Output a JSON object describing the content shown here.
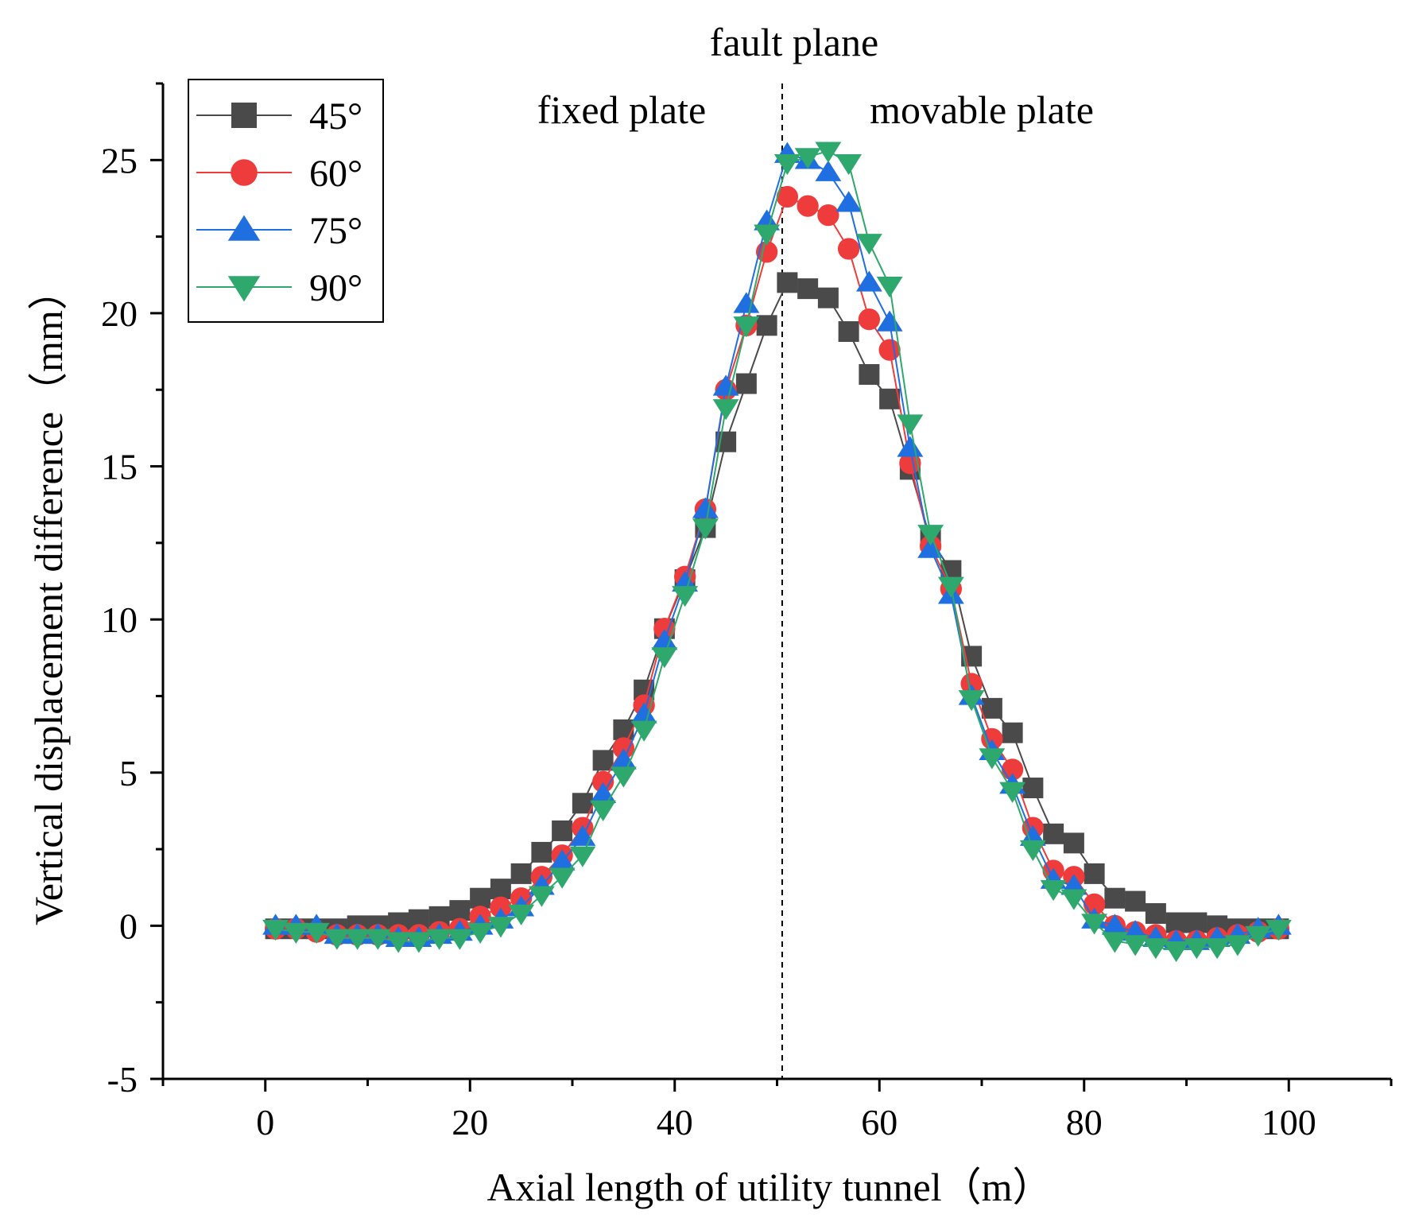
{
  "chart_data": {
    "type": "line",
    "title": "",
    "xlabel": "Axial length of utility tunnel（m）",
    "ylabel": "Vertical displacement difference（mm）",
    "xlim": [
      -10,
      110
    ],
    "ylim": [
      -5,
      27.5
    ],
    "xticks": [
      0,
      20,
      40,
      60,
      80,
      100
    ],
    "yticks": [
      -5,
      0,
      5,
      10,
      15,
      20,
      25
    ],
    "annotations": {
      "fault_plane": "fault plane",
      "fixed_plate": "fixed plate",
      "movable_plate": "movable plate",
      "fault_x": 50.5
    },
    "x": [
      1,
      3,
      5,
      7,
      9,
      11,
      13,
      15,
      17,
      19,
      21,
      23,
      25,
      27,
      29,
      31,
      33,
      35,
      37,
      39,
      41,
      43,
      45,
      47,
      49,
      51,
      53,
      55,
      57,
      59,
      61,
      63,
      65,
      67,
      69,
      71,
      73,
      75,
      77,
      79,
      81,
      83,
      85,
      87,
      89,
      91,
      93,
      95,
      97,
      99
    ],
    "series": [
      {
        "name": "45°",
        "color": "#4a4a4a",
        "marker": "square",
        "values": [
          -0.1,
          -0.1,
          -0.1,
          -0.1,
          0.0,
          0.0,
          0.1,
          0.2,
          0.3,
          0.5,
          0.9,
          1.2,
          1.7,
          2.4,
          3.1,
          4.0,
          5.4,
          6.4,
          7.7,
          9.7,
          11.3,
          13.0,
          15.8,
          17.7,
          19.6,
          21.0,
          20.8,
          20.5,
          19.4,
          18.0,
          17.2,
          14.9,
          12.6,
          11.6,
          8.8,
          7.1,
          6.3,
          4.5,
          3.0,
          2.7,
          1.7,
          0.9,
          0.8,
          0.4,
          0.1,
          0.1,
          0.0,
          -0.1,
          -0.1,
          -0.1
        ]
      },
      {
        "name": "60°",
        "color": "#ee3b3b",
        "marker": "circle",
        "values": [
          -0.1,
          -0.1,
          -0.2,
          -0.3,
          -0.3,
          -0.3,
          -0.3,
          -0.3,
          -0.2,
          -0.1,
          0.3,
          0.6,
          0.9,
          1.6,
          2.3,
          3.2,
          4.7,
          5.8,
          7.2,
          9.7,
          11.4,
          13.6,
          17.5,
          19.6,
          22.0,
          23.8,
          23.5,
          23.2,
          22.1,
          19.8,
          18.8,
          15.1,
          12.4,
          11.0,
          7.9,
          6.1,
          5.1,
          3.2,
          1.8,
          1.6,
          0.7,
          0.0,
          -0.2,
          -0.3,
          -0.5,
          -0.5,
          -0.4,
          -0.3,
          -0.2,
          -0.1
        ]
      },
      {
        "name": "75°",
        "color": "#1f6fe0",
        "marker": "triangle-up",
        "values": [
          0.0,
          0.0,
          0.0,
          -0.3,
          -0.3,
          -0.3,
          -0.4,
          -0.4,
          -0.3,
          -0.2,
          0.0,
          0.2,
          0.6,
          1.3,
          2.1,
          2.9,
          4.3,
          5.4,
          6.9,
          9.3,
          11.2,
          13.6,
          17.6,
          20.3,
          23.0,
          25.2,
          25.0,
          24.6,
          23.6,
          21.0,
          19.7,
          15.6,
          12.3,
          10.8,
          7.5,
          5.7,
          4.6,
          2.9,
          1.5,
          1.3,
          0.2,
          0.0,
          -0.2,
          -0.4,
          -0.5,
          -0.5,
          -0.4,
          -0.3,
          -0.1,
          0.0
        ]
      },
      {
        "name": "90°",
        "color": "#2ea86c",
        "marker": "triangle-down",
        "values": [
          -0.1,
          -0.2,
          -0.2,
          -0.4,
          -0.4,
          -0.4,
          -0.5,
          -0.5,
          -0.4,
          -0.4,
          -0.2,
          0.0,
          0.4,
          1.0,
          1.6,
          2.3,
          3.8,
          4.9,
          6.4,
          8.8,
          10.8,
          13.0,
          16.9,
          19.6,
          22.6,
          24.9,
          25.1,
          25.3,
          24.9,
          22.3,
          20.9,
          16.4,
          12.8,
          11.1,
          7.4,
          5.5,
          4.4,
          2.5,
          1.2,
          0.9,
          0.1,
          -0.5,
          -0.6,
          -0.7,
          -0.8,
          -0.7,
          -0.7,
          -0.6,
          -0.3,
          -0.1
        ]
      }
    ],
    "legend": "top-left"
  }
}
